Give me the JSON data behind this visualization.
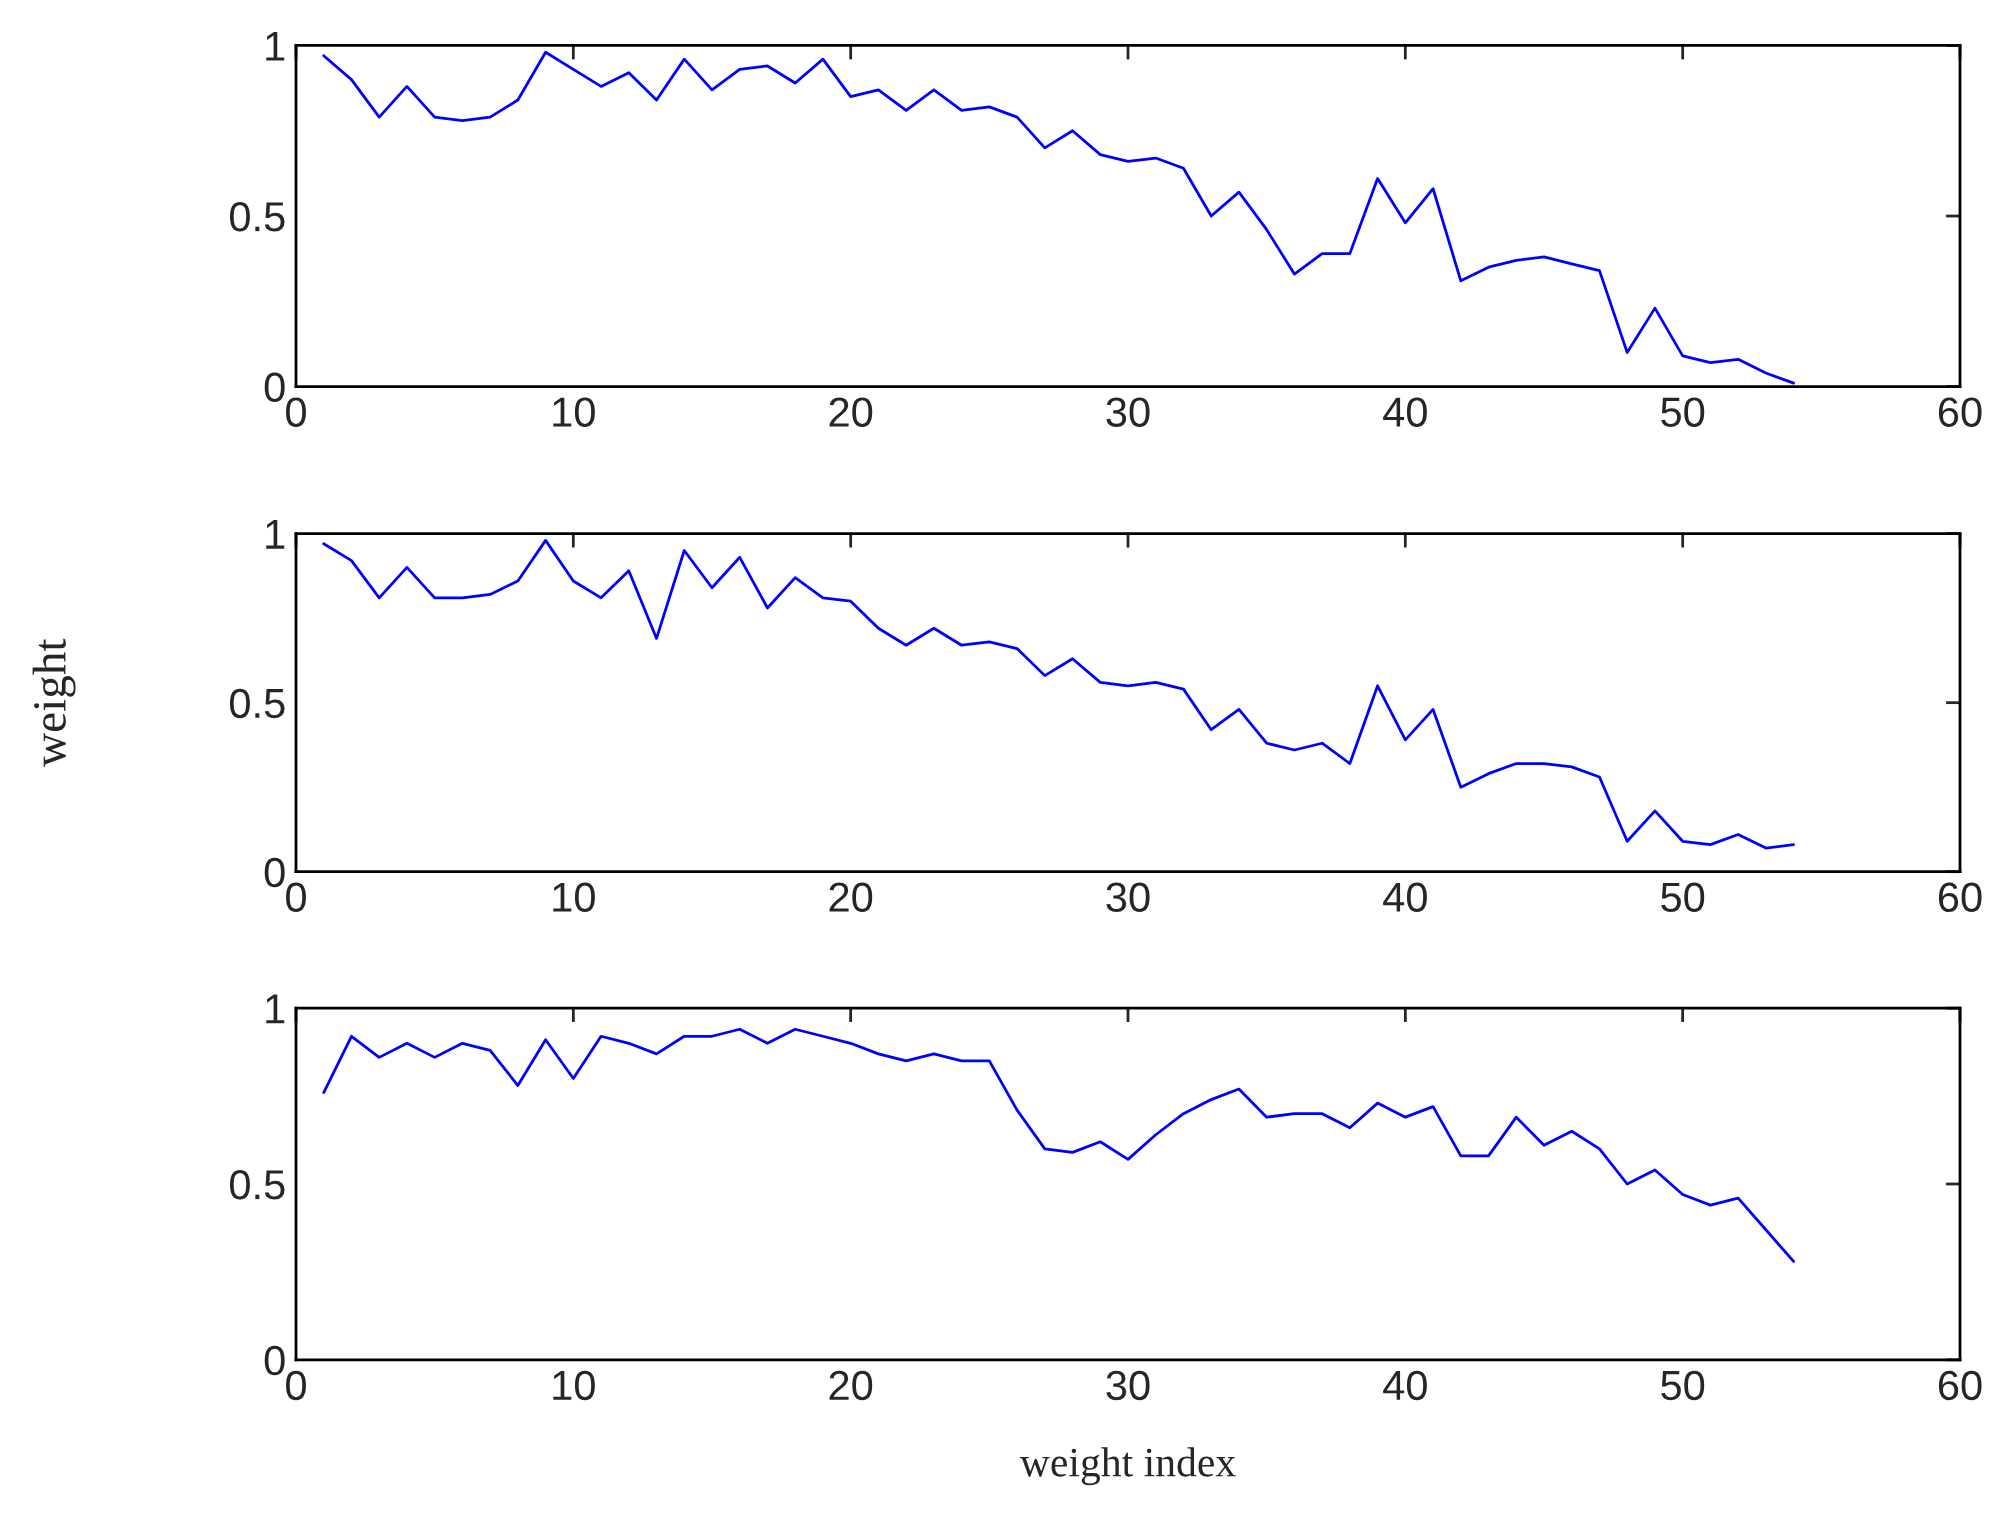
{
  "chart_data": [
    {
      "type": "line",
      "x": [
        1,
        2,
        3,
        4,
        5,
        6,
        7,
        8,
        9,
        10,
        11,
        12,
        13,
        14,
        15,
        16,
        17,
        18,
        19,
        20,
        21,
        22,
        23,
        24,
        25,
        26,
        27,
        28,
        29,
        30,
        31,
        32,
        33,
        34,
        35,
        36,
        37,
        38,
        39,
        40,
        41,
        42,
        43,
        44,
        45,
        46,
        47,
        48,
        49,
        50,
        51,
        52,
        53,
        54
      ],
      "series": [
        {
          "color": "#0000ff",
          "values": [
            0.97,
            0.9,
            0.79,
            0.88,
            0.79,
            0.78,
            0.79,
            0.84,
            0.98,
            0.93,
            0.88,
            0.92,
            0.84,
            0.96,
            0.87,
            0.93,
            0.94,
            0.89,
            0.96,
            0.85,
            0.87,
            0.81,
            0.87,
            0.81,
            0.82,
            0.79,
            0.7,
            0.75,
            0.68,
            0.66,
            0.67,
            0.64,
            0.5,
            0.57,
            0.46,
            0.33,
            0.39,
            0.39,
            0.61,
            0.48,
            0.58,
            0.31,
            0.35,
            0.37,
            0.38,
            0.36,
            0.34,
            0.1,
            0.23,
            0.09,
            0.07,
            0.08,
            0.04,
            0.01
          ]
        }
      ],
      "xlim": [
        0,
        60
      ],
      "xticks": [
        0,
        10,
        20,
        30,
        40,
        50,
        60
      ],
      "ylim": [
        0,
        1
      ],
      "yticks": [
        0,
        0.5,
        1
      ]
    },
    {
      "type": "line",
      "ylabel": "weight",
      "x": [
        1,
        2,
        3,
        4,
        5,
        6,
        7,
        8,
        9,
        10,
        11,
        12,
        13,
        14,
        15,
        16,
        17,
        18,
        19,
        20,
        21,
        22,
        23,
        24,
        25,
        26,
        27,
        28,
        29,
        30,
        31,
        32,
        33,
        34,
        35,
        36,
        37,
        38,
        39,
        40,
        41,
        42,
        43,
        44,
        45,
        46,
        47,
        48,
        49,
        50,
        51,
        52,
        53,
        54
      ],
      "series": [
        {
          "color": "#0000ff",
          "values": [
            0.97,
            0.92,
            0.81,
            0.9,
            0.81,
            0.81,
            0.82,
            0.86,
            0.98,
            0.86,
            0.81,
            0.89,
            0.69,
            0.95,
            0.84,
            0.93,
            0.78,
            0.87,
            0.81,
            0.8,
            0.72,
            0.67,
            0.72,
            0.67,
            0.68,
            0.66,
            0.58,
            0.63,
            0.56,
            0.55,
            0.56,
            0.54,
            0.42,
            0.48,
            0.38,
            0.36,
            0.38,
            0.32,
            0.55,
            0.39,
            0.48,
            0.25,
            0.29,
            0.32,
            0.32,
            0.31,
            0.28,
            0.09,
            0.18,
            0.09,
            0.08,
            0.11,
            0.07,
            0.08
          ]
        }
      ],
      "xlim": [
        0,
        60
      ],
      "xticks": [
        0,
        10,
        20,
        30,
        40,
        50,
        60
      ],
      "ylim": [
        0,
        1
      ],
      "yticks": [
        0,
        0.5,
        1
      ]
    },
    {
      "type": "line",
      "xlabel": "weight index",
      "x": [
        1,
        2,
        3,
        4,
        5,
        6,
        7,
        8,
        9,
        10,
        11,
        12,
        13,
        14,
        15,
        16,
        17,
        18,
        19,
        20,
        21,
        22,
        23,
        24,
        25,
        26,
        27,
        28,
        29,
        30,
        31,
        32,
        33,
        34,
        35,
        36,
        37,
        38,
        39,
        40,
        41,
        42,
        43,
        44,
        45,
        46,
        47,
        48,
        49,
        50,
        51,
        52,
        53,
        54
      ],
      "series": [
        {
          "color": "#0000ff",
          "values": [
            0.76,
            0.92,
            0.86,
            0.9,
            0.86,
            0.9,
            0.88,
            0.78,
            0.91,
            0.8,
            0.92,
            0.9,
            0.87,
            0.92,
            0.92,
            0.94,
            0.9,
            0.94,
            0.92,
            0.9,
            0.87,
            0.85,
            0.87,
            0.85,
            0.85,
            0.71,
            0.6,
            0.59,
            0.62,
            0.57,
            0.64,
            0.7,
            0.74,
            0.77,
            0.69,
            0.7,
            0.7,
            0.66,
            0.73,
            0.69,
            0.72,
            0.58,
            0.58,
            0.69,
            0.61,
            0.65,
            0.6,
            0.5,
            0.54,
            0.47,
            0.44,
            0.46,
            0.37,
            0.28
          ]
        }
      ],
      "xlim": [
        0,
        60
      ],
      "xticks": [
        0,
        10,
        20,
        30,
        40,
        50,
        60
      ],
      "ylim": [
        0,
        1
      ],
      "yticks": [
        0,
        0.5,
        1
      ]
    }
  ]
}
